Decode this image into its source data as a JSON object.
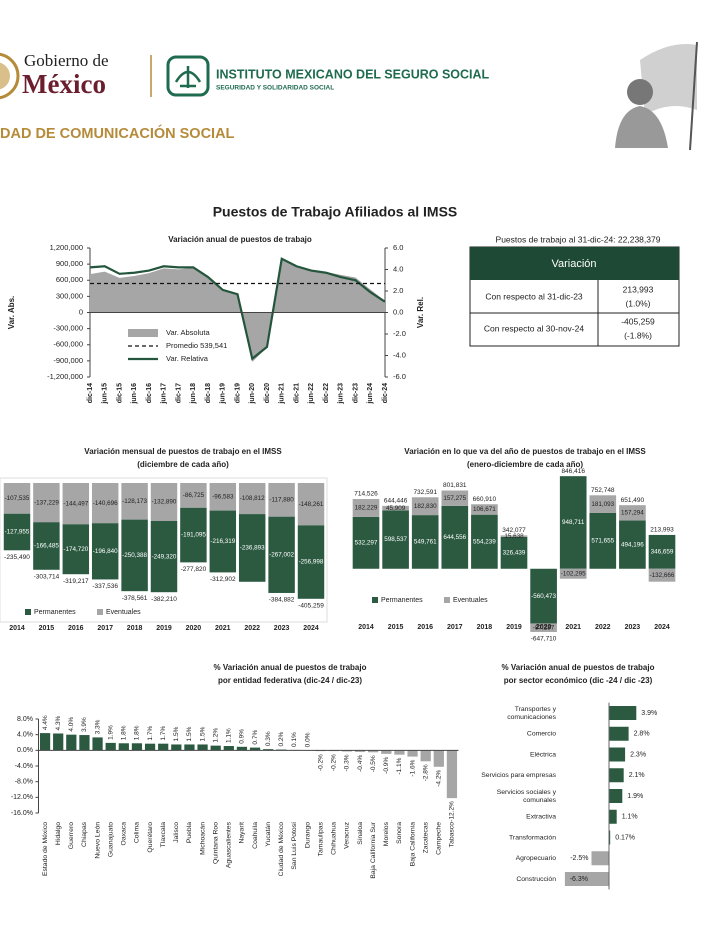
{
  "header": {
    "gov_line1": "Gobierno de",
    "gov_line2": "México",
    "imss_name": "INSTITUTO MEXICANO DEL SEGURO SOCIAL",
    "imss_motto": "SEGURIDAD Y SOLIDARIDAD SOCIAL",
    "unit": "DAD DE COMUNICACIÓN SOCIAL"
  },
  "title": "Puestos de Trabajo Afiliados al IMSS",
  "summary_table": {
    "caption": "Puestos de trabajo al 31-dic-24: 22,238,379",
    "header": "Variación",
    "rows": [
      [
        "Con respecto al 31-dic-23",
        "213,993",
        "(1.0%)"
      ],
      [
        "Con respecto al 30-nov-24",
        "-405,259",
        "(-1.8%)"
      ]
    ]
  },
  "chart_data": [
    {
      "type": "line",
      "title": "Variación anual de puestos de trabajo",
      "ylabel": "Var. Abs.",
      "y2label": "Var. Rel.",
      "x": [
        "dic-14",
        "jun-15",
        "dic-15",
        "jun-16",
        "dic-16",
        "jun-17",
        "dic-17",
        "jun-18",
        "dic-18",
        "jun-19",
        "dic-19",
        "jun-20",
        "dic-20",
        "jun-21",
        "dic-21",
        "jun-22",
        "dic-22",
        "jun-23",
        "dic-23",
        "jun-24",
        "dic-24"
      ],
      "series": [
        {
          "name": "Var. Absoluta",
          "kind": "area",
          "color": "#a6a6a6",
          "axis": "y",
          "values": [
            714526,
            760000,
            644446,
            680000,
            732591,
            820000,
            801831,
            830000,
            660910,
            420000,
            342077,
            -920000,
            -647710,
            1000000,
            846416,
            790000,
            752748,
            700000,
            651490,
            430000,
            213993
          ]
        },
        {
          "name": "Var. Relativa",
          "kind": "line",
          "color": "#24553d",
          "axis": "y2",
          "values": [
            4.2,
            4.3,
            3.6,
            3.7,
            3.9,
            4.3,
            4.2,
            4.2,
            3.3,
            2.1,
            1.7,
            -4.3,
            -3.2,
            5.0,
            4.3,
            3.9,
            3.7,
            3.3,
            3.0,
            1.9,
            1.0
          ]
        }
      ],
      "reference_line": {
        "name": "Promedio 539,541",
        "value": 539541,
        "color": "#111111"
      },
      "ylim": [
        -1200000,
        1200000
      ],
      "yticks": [
        {
          "value": 1200000,
          "label": "1,200,000"
        },
        {
          "value": 900000,
          "label": "900,000"
        },
        {
          "value": 600000,
          "label": "600,000"
        },
        {
          "value": 300000,
          "label": "300,000"
        },
        0,
        {
          "value": -300000,
          "label": "-300,000"
        },
        {
          "value": -600000,
          "label": "-600,000"
        },
        {
          "value": -900000,
          "label": "-900,000"
        },
        {
          "value": -1200000,
          "label": "-1,200,000"
        }
      ],
      "y2lim": [
        -6,
        6
      ],
      "y2ticks": [
        {
          "value": 6,
          "label": "6.0"
        },
        {
          "value": 4,
          "label": "4.0"
        },
        {
          "value": 2,
          "label": "2.0"
        },
        {
          "value": 0,
          "label": "0.0"
        },
        {
          "value": -2,
          "label": "-2.0"
        },
        {
          "value": -4,
          "label": "-4.0"
        },
        {
          "value": -6,
          "label": "-6.0"
        }
      ]
    },
    {
      "type": "stacked_bar",
      "title": "Variación mensual de puestos de trabajo en el IMSS",
      "subtitle": "(diciembre de cada año)",
      "categories": [
        "2014",
        "2015",
        "2016",
        "2017",
        "2018",
        "2019",
        "2020",
        "2021",
        "2022",
        "2023",
        "2024"
      ],
      "stack_order": "reverse",
      "series": [
        {
          "name": "Permanentes",
          "color": "#2b5a41",
          "label_color": "#ffffff",
          "values": [
            -127955,
            -166485,
            -174720,
            -196840,
            -250388,
            -249320,
            -191095,
            -216319,
            -236893,
            -267002,
            -256998
          ],
          "value_labels": [
            "-127,955",
            "-166,485",
            "-174,720",
            "-196,840",
            "-250,388",
            "-249,320",
            "-191,095",
            "-216,319",
            "-236,893",
            "-267,002",
            "-256,998"
          ]
        },
        {
          "name": "Eventuales",
          "color": "#a6a6a6",
          "label_color": "#222222",
          "values": [
            -107535,
            -137229,
            -144497,
            -140696,
            -128173,
            -132890,
            -86725,
            -96583,
            -108812,
            -117880,
            -148261
          ],
          "value_labels": [
            "-107,535",
            "-137,229",
            "-144,497",
            "-140,696",
            "-128,173",
            "-132,890",
            "-86,725",
            "-96,583",
            "-108,812",
            "-117,880",
            "-148,261"
          ]
        }
      ],
      "total_labels": [
        "-235,490",
        "-303,714",
        "-319,217",
        "-337,536",
        "-378,561",
        "-382,210",
        "-277,820",
        "-312,902",
        null,
        "-384,882",
        "-405,259"
      ],
      "ylim": [
        -420000,
        0
      ]
    },
    {
      "type": "stacked_bar",
      "title": "Variación en lo que va del año de puestos de trabajo en el IMSS",
      "subtitle": "(enero-diciembre de cada año)",
      "categories": [
        "2014",
        "2015",
        "2016",
        "2017",
        "2018",
        "2019",
        "2020",
        "2021",
        "2022",
        "2023",
        "2024"
      ],
      "stack_order": "normal",
      "series": [
        {
          "name": "Permanentes",
          "color": "#2b5a41",
          "label_color": "#ffffff",
          "values": [
            532297,
            598537,
            549761,
            644556,
            554239,
            326439,
            -560473,
            948711,
            571655,
            494196,
            346659
          ],
          "value_labels": [
            "532,297",
            "598,537",
            "549,761",
            "644,556",
            "554,239",
            "326,439",
            "-560,473",
            "948,711",
            "571,655",
            "494,196",
            "346,659"
          ]
        },
        {
          "name": "Eventuales",
          "color": "#a6a6a6",
          "label_color": "#222222",
          "values": [
            182229,
            45909,
            182830,
            157275,
            106671,
            15638,
            -87237,
            -102295,
            181093,
            157294,
            -132666
          ],
          "value_labels": [
            "182,229",
            "45,909",
            "182,830",
            "157,275",
            "106,671",
            "15,638",
            "-87,237",
            "-102,295",
            "181,093",
            "157,294",
            "-132,666"
          ]
        }
      ],
      "total_labels": [
        "714,526",
        "644,446",
        "732,591",
        "801,831",
        "660,910",
        "342,077",
        "-647,710",
        "846,416",
        "752,748",
        "651,490",
        "213,993"
      ],
      "ylim": [
        -730000,
        930000
      ]
    },
    {
      "type": "bar",
      "title": "% Variación anual de puestos de trabajo",
      "subtitle": "por entidad federativa (dic-24 / dic-23)",
      "categories": [
        "Estado de México",
        "Hidalgo",
        "Guerrero",
        "Chiapas",
        "Nuevo León",
        "Guanajuato",
        "Oaxaca",
        "Colima",
        "Querétaro",
        "Tlaxcala",
        "Jalisco",
        "Puebla",
        "Michoacán",
        "Quintana Roo",
        "Aguascalientes",
        "Nayarit",
        "Coahuila",
        "Yucatán",
        "Ciudad de México",
        "San Luis Potosí",
        "Durango",
        "Tamaulipas",
        "Chihuahua",
        "Veracruz",
        "Sinaloa",
        "Baja California Sur",
        "Morelos",
        "Sonora",
        "Baja California",
        "Zacatecas",
        "Campeche",
        "Tabasco"
      ],
      "values": [
        4.4,
        4.3,
        4.0,
        3.9,
        3.3,
        1.9,
        1.8,
        1.8,
        1.7,
        1.7,
        1.5,
        1.5,
        1.5,
        1.2,
        1.1,
        0.9,
        0.7,
        0.3,
        0.2,
        0.1,
        0.0,
        -0.2,
        -0.2,
        -0.3,
        -0.4,
        -0.5,
        -0.9,
        -1.1,
        -1.6,
        -2.8,
        -4.2,
        -12.2
      ],
      "value_labels": [
        "4.4%",
        "4.3%",
        "4.0%",
        "3.9%",
        "3.3%",
        "1.9%",
        "1.8%",
        "1.8%",
        "1.7%",
        "1.7%",
        "1.5%",
        "1.5%",
        "1.5%",
        "1.2%",
        "1.1%",
        "0.9%",
        "0.7%",
        "0.3%",
        "0.2%",
        "0.1%",
        "0.0%",
        "-0.2%",
        "-0.2%",
        "-0.3%",
        "-0.4%",
        "-0.5%",
        "-0.9%",
        "-1.1%",
        "-1.6%",
        "-2.8%",
        "-4.2%",
        "-12.2%"
      ],
      "color": "#2b5a41",
      "negative_color": "#a6a6a6",
      "ylim": [
        -16,
        8
      ],
      "yticks": [
        {
          "value": 8,
          "label": "8.0%"
        },
        {
          "value": 4,
          "label": "4.0%"
        },
        {
          "value": 0,
          "label": "0.0%"
        },
        {
          "value": -4,
          "label": "-4.0%"
        },
        {
          "value": -8,
          "label": "-8.0%"
        },
        {
          "value": -12,
          "label": "-12.0%"
        },
        {
          "value": -16,
          "label": "-16.0%"
        }
      ]
    },
    {
      "type": "hbar",
      "title": "% Variación anual de puestos de trabajo",
      "subtitle": "por sector económico (dic -24 / dic -23)",
      "categories": [
        [
          "Transportes y",
          "comunicaciones"
        ],
        "Comercio",
        "Eléctrica",
        "Servicios para empresas",
        [
          "Servicios sociales y",
          "comunales"
        ],
        "Extractiva",
        "Transformación",
        "Agropecuario",
        "Construcción"
      ],
      "values": [
        3.9,
        2.8,
        2.3,
        2.1,
        1.9,
        1.1,
        0.17,
        -2.5,
        -6.3
      ],
      "value_labels": [
        "3.9%",
        "2.8%",
        "2.3%",
        "2.1%",
        "1.9%",
        "1.1%",
        "0.17%",
        "-2.5%",
        "-6.3%"
      ],
      "color": "#2b5a41",
      "negative_color": "#a6a6a6",
      "xlim": [
        -7,
        4.5
      ]
    }
  ]
}
